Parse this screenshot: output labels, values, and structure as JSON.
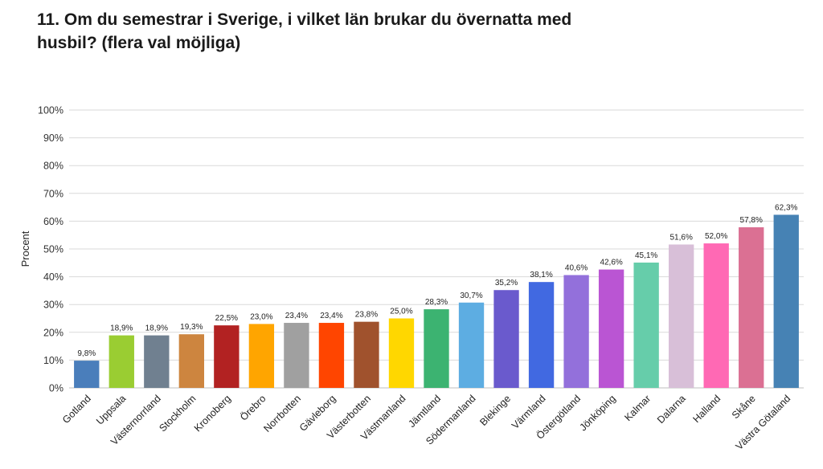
{
  "title": "11. Om du semestrar i Sverige, i vilket län brukar du övernatta med husbil? (flera val möjliga)",
  "chart_data": {
    "type": "bar",
    "ylabel": "Procent",
    "ylim": [
      0,
      100
    ],
    "yticks": [
      "0%",
      "10%",
      "20%",
      "30%",
      "40%",
      "50%",
      "60%",
      "70%",
      "80%",
      "90%",
      "100%"
    ],
    "grid": true,
    "categories": [
      "Gotland",
      "Uppsala",
      "Västernorrland",
      "Stockholm",
      "Kronoberg",
      "Örebro",
      "Norrbotten",
      "Gävleborg",
      "Västerbotten",
      "Västmanland",
      "Jämtland",
      "Södermanland",
      "Blekinge",
      "Värmland",
      "Östergötland",
      "Jönköping",
      "Kalmar",
      "Dalarna",
      "Halland",
      "Skåne",
      "Västra Götaland"
    ],
    "values": [
      9.8,
      18.9,
      18.9,
      19.3,
      22.5,
      23.0,
      23.4,
      23.4,
      23.8,
      25.0,
      28.3,
      30.7,
      35.2,
      38.1,
      40.6,
      42.6,
      45.1,
      51.6,
      52.0,
      57.8,
      62.3
    ],
    "data_labels": [
      "9,8%",
      "18,9%",
      "18,9%",
      "19,3%",
      "22,5%",
      "23,0%",
      "23,4%",
      "23,4%",
      "23,8%",
      "25,0%",
      "28,3%",
      "30,7%",
      "35,2%",
      "38,1%",
      "40,6%",
      "42,6%",
      "45,1%",
      "51,6%",
      "52,0%",
      "57,8%",
      "62,3%"
    ],
    "colors": [
      "#4a7ebb",
      "#9acd32",
      "#708090",
      "#cd853f",
      "#b22222",
      "#ffa500",
      "#a0a0a0",
      "#ff4500",
      "#a0522d",
      "#ffd700",
      "#3cb371",
      "#5dade2",
      "#6a5acd",
      "#4169e1",
      "#9370db",
      "#ba55d3",
      "#66cdaa",
      "#d8bfd8",
      "#ff69b4",
      "#db7093",
      "#4682b4"
    ]
  }
}
